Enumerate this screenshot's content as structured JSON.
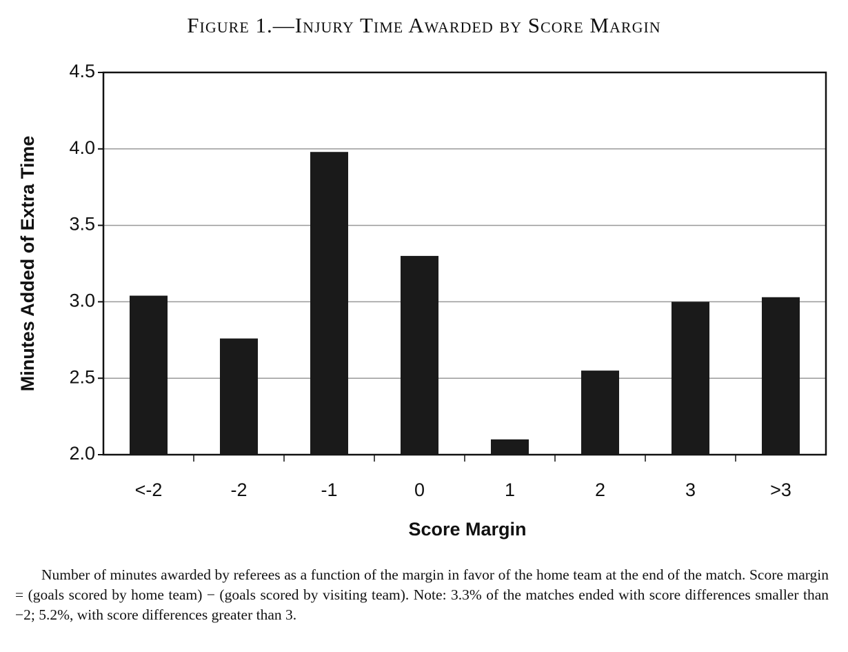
{
  "chart_data": {
    "type": "bar",
    "title": "Figure 1.—Injury Time Awarded by Score Margin",
    "x_label": "Score Margin",
    "y_label": "Minutes Added of Extra Time",
    "categories": [
      "<-2",
      "-2",
      "-1",
      "0",
      "1",
      "2",
      "3",
      ">3"
    ],
    "values": [
      3.04,
      2.76,
      3.98,
      3.3,
      2.1,
      2.55,
      3.0,
      3.03
    ],
    "color": "#1a1a1a",
    "ylim": [
      2,
      4.5
    ],
    "yticks": [
      {
        "value": 2,
        "label": "2.0"
      },
      2.5,
      {
        "value": 3,
        "label": "3.0"
      },
      3.5,
      {
        "value": 4,
        "label": "4.0"
      },
      4.5
    ],
    "grid": true,
    "caption": "Number of minutes awarded by referees as a function of the margin in favor of the home team at the end of the match. Score margin = (goals scored by home team) − (goals scored by visiting team). Note: 3.3% of the matches ended with score differences smaller than −2; 5.2%, with score differences greater than 3."
  }
}
